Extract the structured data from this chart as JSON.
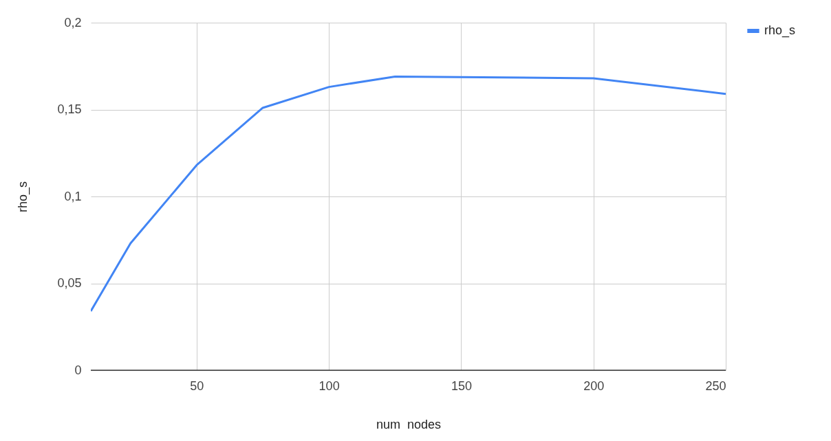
{
  "chart_data": {
    "type": "line",
    "xlabel": "num_nodes",
    "ylabel": "rho_s",
    "x": [
      10,
      25,
      50,
      75,
      100,
      125,
      200,
      250
    ],
    "series": [
      {
        "name": "rho_s",
        "color": "#4285f4",
        "values": [
          0.034,
          0.073,
          0.118,
          0.151,
          0.163,
          0.169,
          0.168,
          0.159
        ]
      }
    ],
    "xlim": [
      10,
      250
    ],
    "xticks": [
      50,
      100,
      150,
      200,
      250
    ],
    "ylim": [
      0,
      0.2
    ],
    "yticks": [
      {
        "value": 0,
        "label": "0"
      },
      {
        "value": 0.05,
        "label": "0,05"
      },
      {
        "value": 0.1,
        "label": "0,1"
      },
      {
        "value": 0.15,
        "label": "0,15"
      },
      {
        "value": 0.2,
        "label": "0,2"
      }
    ],
    "grid": true,
    "legend": "top right",
    "marker": "none",
    "line_style": "solid"
  }
}
